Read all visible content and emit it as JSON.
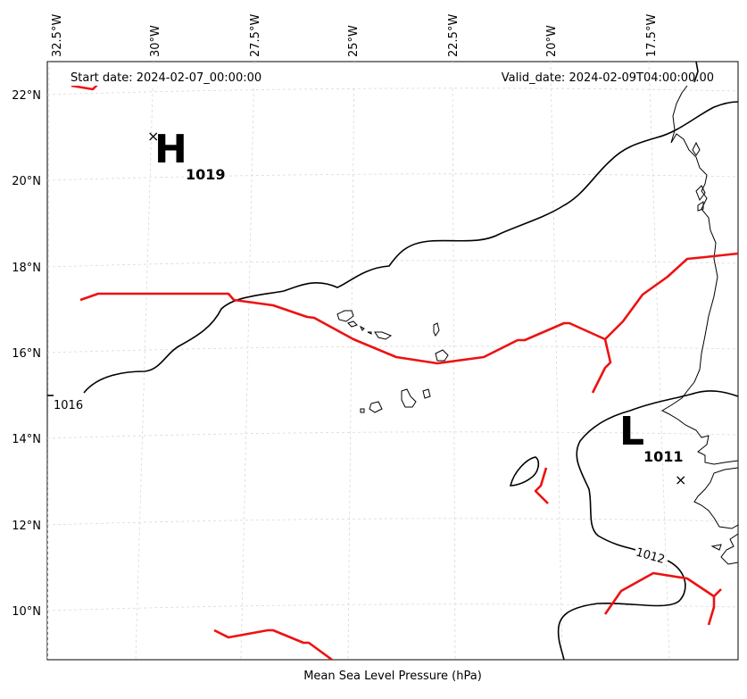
{
  "header": {
    "start_date": "Start date: 2024-02-07_00:00:00",
    "valid_date": "Valid_date: 2024-02-09T04:00:00.00"
  },
  "caption": "Mean Sea Level Pressure (hPa)",
  "longitude_labels": [
    "32.5°W",
    "30°W",
    "27.5°W",
    "25°W",
    "22.5°W",
    "20°W",
    "17.5°W"
  ],
  "latitude_labels": [
    "22°N",
    "20°N",
    "18°N",
    "16°N",
    "14°N",
    "12°N",
    "10°N"
  ],
  "pressure_centers": {
    "high": {
      "letter": "H",
      "value": "1019",
      "marker": "×"
    },
    "low": {
      "letter": "L",
      "value": "1011",
      "marker": "×"
    }
  },
  "contour_labels": {
    "c1016": "1016",
    "c1012": "1012"
  },
  "colors": {
    "isobar": "#000000",
    "front": "#ee1111",
    "grid": "#d9d9d9",
    "coast": "#000000"
  }
}
